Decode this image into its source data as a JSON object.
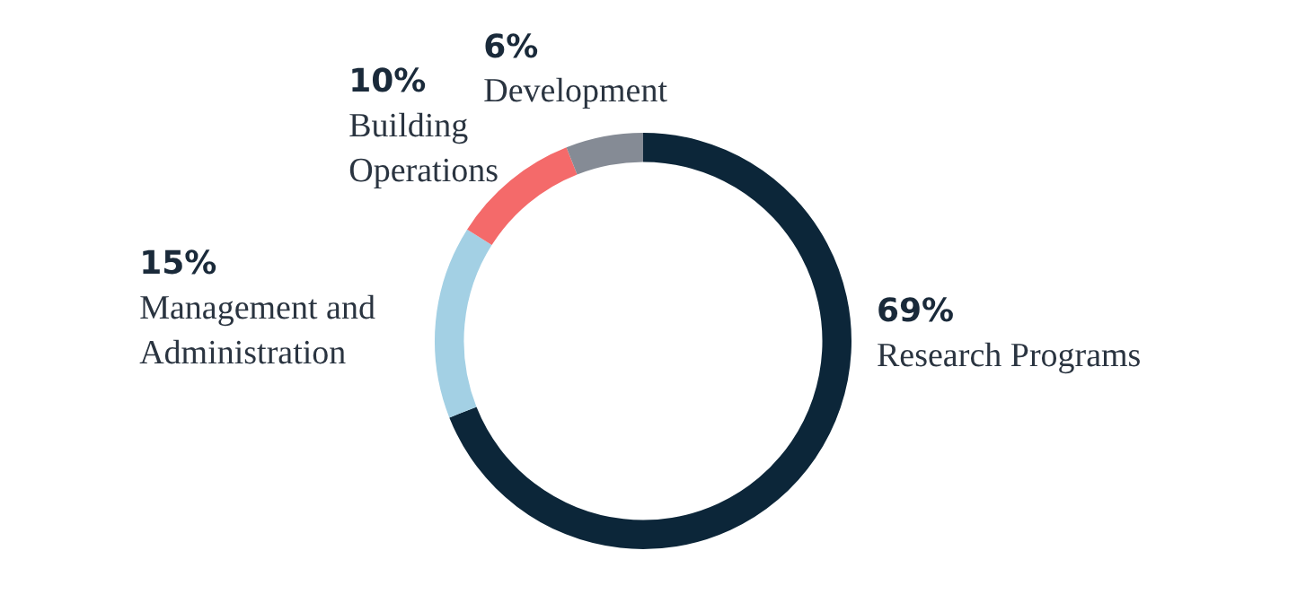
{
  "chart_data": {
    "type": "donut",
    "categories": [
      "Research Programs",
      "Management and Administration",
      "Building Operations",
      "Development"
    ],
    "values": [
      69,
      15,
      10,
      6
    ],
    "colors": [
      "#0c2639",
      "#a3d0e4",
      "#f46a6a",
      "#858b95"
    ],
    "value_labels": [
      "69%",
      "15%",
      "10%",
      "6%"
    ],
    "legend": false
  }
}
